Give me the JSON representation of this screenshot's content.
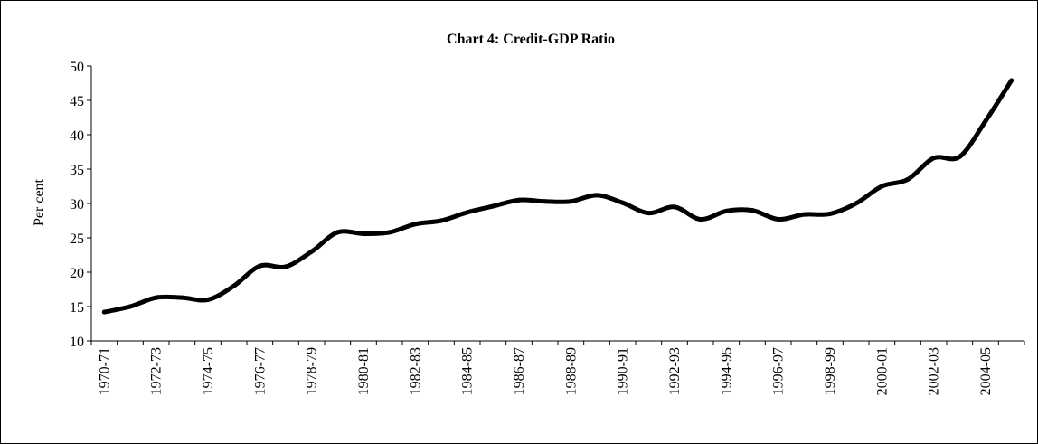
{
  "chart_data": {
    "type": "line",
    "title": "Chart 4: Credit-GDP Ratio",
    "xlabel": "",
    "ylabel": "Per cent",
    "ylim": [
      10,
      50
    ],
    "yticks": [
      10,
      15,
      20,
      25,
      30,
      35,
      40,
      45,
      50
    ],
    "grid": false,
    "legend": "none",
    "line_color": "#000000",
    "x_tick_labels": [
      "1970-71",
      "1972-73",
      "1974-75",
      "1976-77",
      "1978-79",
      "1980-81",
      "1982-83",
      "1984-85",
      "1986-87",
      "1988-89",
      "1990-91",
      "1992-93",
      "1994-95",
      "1996-97",
      "1998-99",
      "2000-01",
      "2002-03",
      "2004-05"
    ],
    "categories": [
      "1970-71",
      "1971-72",
      "1972-73",
      "1973-74",
      "1974-75",
      "1975-76",
      "1976-77",
      "1977-78",
      "1978-79",
      "1979-80",
      "1980-81",
      "1981-82",
      "1982-83",
      "1983-84",
      "1984-85",
      "1985-86",
      "1986-87",
      "1987-88",
      "1988-89",
      "1989-90",
      "1990-91",
      "1991-92",
      "1992-93",
      "1993-94",
      "1994-95",
      "1995-96",
      "1996-97",
      "1997-98",
      "1998-99",
      "1999-00",
      "2000-01",
      "2001-02",
      "2002-03",
      "2003-04",
      "2004-05",
      "2005-06"
    ],
    "series": [
      {
        "values": [
          14.2,
          15.0,
          16.3,
          16.3,
          16.0,
          18.0,
          20.9,
          20.8,
          23.0,
          25.8,
          25.6,
          25.8,
          27.0,
          27.5,
          28.7,
          29.6,
          30.5,
          30.3,
          30.3,
          31.2,
          30.1,
          28.6,
          29.5,
          27.7,
          28.9,
          29.0,
          27.7,
          28.4,
          28.5,
          30.0,
          32.5,
          33.5,
          36.6,
          36.8,
          42.0,
          47.9
        ]
      }
    ]
  }
}
